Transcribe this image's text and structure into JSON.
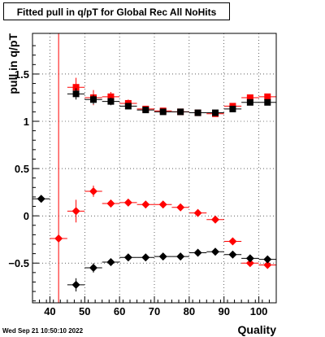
{
  "chart_data": {
    "type": "scatter",
    "title": "Fitted pull in q/pT for Global Rec All NoHits",
    "xlabel": "Quality",
    "ylabel": "pull in q/pT",
    "xlim": [
      35,
      105
    ],
    "ylim": [
      -0.92,
      1.93
    ],
    "x_ticks": [
      40,
      50,
      60,
      70,
      80,
      90,
      100
    ],
    "y_ticks": [
      -0.5,
      0,
      0.5,
      1,
      1.5
    ],
    "grid": true,
    "vertical_line_x": 42.5,
    "series": [
      {
        "color": "#ff0000",
        "marker": "square",
        "points": [
          {
            "x": 47.5,
            "y": 1.36,
            "ey": 0.1
          },
          {
            "x": 52.5,
            "y": 1.25,
            "ey": 0.08
          },
          {
            "x": 57.5,
            "y": 1.26,
            "ey": 0.05
          },
          {
            "x": 62.5,
            "y": 1.19,
            "ey": 0.04
          },
          {
            "x": 67.5,
            "y": 1.13,
            "ey": 0.03
          },
          {
            "x": 72.5,
            "y": 1.11,
            "ey": 0.03
          },
          {
            "x": 77.5,
            "y": 1.1,
            "ey": 0.03
          },
          {
            "x": 82.5,
            "y": 1.09,
            "ey": 0.03
          },
          {
            "x": 87.5,
            "y": 1.08,
            "ey": 0.03
          },
          {
            "x": 92.5,
            "y": 1.16,
            "ey": 0.03
          },
          {
            "x": 97.5,
            "y": 1.25,
            "ey": 0.03
          },
          {
            "x": 102.5,
            "y": 1.26,
            "ey": 0.03
          }
        ]
      },
      {
        "color": "#000000",
        "marker": "square",
        "points": [
          {
            "x": 47.5,
            "y": 1.29,
            "ey": 0.06
          },
          {
            "x": 52.5,
            "y": 1.23,
            "ey": 0.05
          },
          {
            "x": 57.5,
            "y": 1.21,
            "ey": 0.04
          },
          {
            "x": 62.5,
            "y": 1.16,
            "ey": 0.03
          },
          {
            "x": 67.5,
            "y": 1.12,
            "ey": 0.03
          },
          {
            "x": 72.5,
            "y": 1.1,
            "ey": 0.03
          },
          {
            "x": 77.5,
            "y": 1.1,
            "ey": 0.03
          },
          {
            "x": 82.5,
            "y": 1.09,
            "ey": 0.03
          },
          {
            "x": 87.5,
            "y": 1.09,
            "ey": 0.03
          },
          {
            "x": 92.5,
            "y": 1.13,
            "ey": 0.03
          },
          {
            "x": 97.5,
            "y": 1.2,
            "ey": 0.03
          },
          {
            "x": 102.5,
            "y": 1.2,
            "ey": 0.03
          }
        ]
      },
      {
        "color": "#ff0000",
        "marker": "diamond",
        "points": [
          {
            "x": 42.5,
            "y": -0.24,
            "ey": 0.0
          },
          {
            "x": 47.5,
            "y": 0.05,
            "ey": 0.12
          },
          {
            "x": 52.5,
            "y": 0.26,
            "ey": 0.06
          },
          {
            "x": 57.5,
            "y": 0.13,
            "ey": 0.04
          },
          {
            "x": 62.5,
            "y": 0.14,
            "ey": 0.03
          },
          {
            "x": 67.5,
            "y": 0.12,
            "ey": 0.03
          },
          {
            "x": 72.5,
            "y": 0.12,
            "ey": 0.03
          },
          {
            "x": 77.5,
            "y": 0.09,
            "ey": 0.03
          },
          {
            "x": 82.5,
            "y": 0.03,
            "ey": 0.03
          },
          {
            "x": 87.5,
            "y": -0.04,
            "ey": 0.03
          },
          {
            "x": 92.5,
            "y": -0.27,
            "ey": 0.03
          },
          {
            "x": 97.5,
            "y": -0.5,
            "ey": 0.03
          },
          {
            "x": 102.5,
            "y": -0.52,
            "ey": 0.03
          }
        ]
      },
      {
        "color": "#000000",
        "marker": "diamond",
        "points": [
          {
            "x": 37.5,
            "y": 0.18,
            "ey": 0.0
          },
          {
            "x": 47.5,
            "y": -0.73,
            "ey": 0.07
          },
          {
            "x": 52.5,
            "y": -0.55,
            "ey": 0.05
          },
          {
            "x": 57.5,
            "y": -0.49,
            "ey": 0.03
          },
          {
            "x": 62.5,
            "y": -0.44,
            "ey": 0.03
          },
          {
            "x": 67.5,
            "y": -0.44,
            "ey": 0.03
          },
          {
            "x": 72.5,
            "y": -0.43,
            "ey": 0.03
          },
          {
            "x": 77.5,
            "y": -0.43,
            "ey": 0.03
          },
          {
            "x": 82.5,
            "y": -0.39,
            "ey": 0.03
          },
          {
            "x": 87.5,
            "y": -0.38,
            "ey": 0.03
          },
          {
            "x": 92.5,
            "y": -0.41,
            "ey": 0.03
          },
          {
            "x": 97.5,
            "y": -0.45,
            "ey": 0.03
          },
          {
            "x": 102.5,
            "y": -0.46,
            "ey": 0.03
          }
        ]
      }
    ]
  },
  "footer": {
    "timestamp": "Wed Sep 21 10:50:10 2022"
  }
}
